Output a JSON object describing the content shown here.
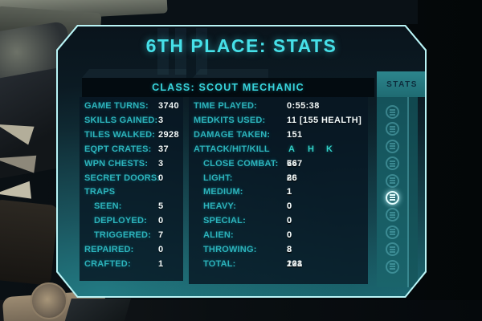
{
  "title": "6TH PLACE: STATS",
  "class_header": "CLASS: SCOUT MECHANIC",
  "sidebar": {
    "tab_label": "STATS",
    "icons": [
      {
        "name": "stats-list-icon",
        "active": false
      },
      {
        "name": "stats-list-icon",
        "active": false
      },
      {
        "name": "stats-list-icon",
        "active": false
      },
      {
        "name": "stats-list-icon",
        "active": false
      },
      {
        "name": "stats-list-icon",
        "active": false
      },
      {
        "name": "stats-list-icon",
        "active": true
      },
      {
        "name": "stats-list-icon",
        "active": false
      },
      {
        "name": "stats-list-icon",
        "active": false
      },
      {
        "name": "stats-list-icon",
        "active": false
      },
      {
        "name": "stats-list-icon",
        "active": false
      }
    ]
  },
  "left_stats": [
    {
      "label": "GAME TURNS:",
      "value": "3740"
    },
    {
      "label": "SKILLS GAINED:",
      "value": "3"
    },
    {
      "label": "TILES WALKED:",
      "value": "2928"
    },
    {
      "label": "EQPT CRATES:",
      "value": "37"
    },
    {
      "label": "WPN CHESTS:",
      "value": "3"
    },
    {
      "label": "SECRET DOORS:",
      "value": "0"
    },
    {
      "label": "TRAPS",
      "value": ""
    },
    {
      "label": "SEEN:",
      "value": "5"
    },
    {
      "label": "DEPLOYED:",
      "value": "0"
    },
    {
      "label": "TRIGGERED:",
      "value": "7"
    },
    {
      "label": "REPAIRED:",
      "value": "0"
    },
    {
      "label": "CRAFTED:",
      "value": "1"
    }
  ],
  "right_stats": {
    "simple_rows": [
      {
        "label": "TIME PLAYED:",
        "value": "0:55:38"
      },
      {
        "label": "MEDKITS USED:",
        "value": "11 [155 HEALTH]"
      },
      {
        "label": "DAMAGE TAKEN:",
        "value": "151"
      }
    ],
    "header": {
      "label": "ATTACK/HIT/KILL",
      "cols": [
        "A",
        "H",
        "K"
      ]
    },
    "table_rows": [
      {
        "label": "CLOSE COMBAT:",
        "a": "147",
        "h": "76",
        "k": "66"
      },
      {
        "label": "LIGHT:",
        "a": "68",
        "h": "36",
        "k": "26"
      },
      {
        "label": "MEDIUM:",
        "a": "1",
        "h": "1",
        "k": "1"
      },
      {
        "label": "HEAVY:",
        "a": "0",
        "h": "0",
        "k": "0"
      },
      {
        "label": "SPECIAL:",
        "a": "0",
        "h": "0",
        "k": "0"
      },
      {
        "label": "ALIEN:",
        "a": "0",
        "h": "0",
        "k": "0"
      },
      {
        "label": "THROWING:",
        "a": "2",
        "h": "8",
        "k": "8"
      },
      {
        "label": "TOTAL:",
        "a": "218",
        "h": "121",
        "k": "101"
      }
    ]
  },
  "colors": {
    "accent_cyan": "#46e0e8",
    "label_teal": "#2db3bb",
    "value_white": "#f4fbfb",
    "panel_border": "#b9f4f6",
    "tab_teal": "#26767d"
  }
}
